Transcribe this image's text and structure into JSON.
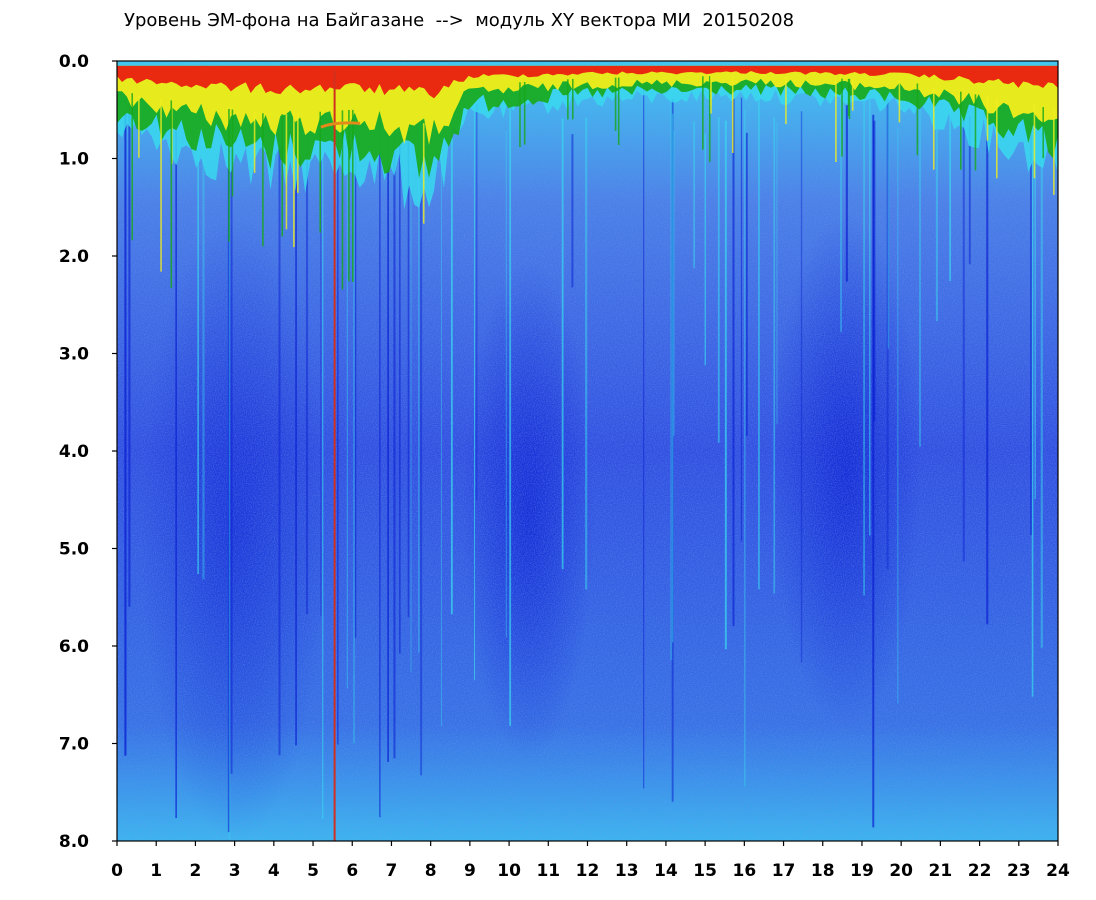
{
  "chart_data": {
    "type": "heatmap",
    "title": "Уровень ЭМ-фона на Байгазане  -->  модуль XY вектора МИ  20150208",
    "xlabel": "",
    "ylabel": "",
    "xlim": [
      0,
      24
    ],
    "ylim": [
      8.0,
      0.0
    ],
    "x_ticks": [
      "0",
      "1",
      "2",
      "3",
      "4",
      "5",
      "6",
      "7",
      "8",
      "9",
      "10",
      "11",
      "12",
      "13",
      "14",
      "15",
      "16",
      "17",
      "18",
      "19",
      "20",
      "21",
      "22",
      "23",
      "24"
    ],
    "y_ticks": [
      "0.0",
      "1.0",
      "2.0",
      "3.0",
      "4.0",
      "5.0",
      "6.0",
      "7.0",
      "8.0"
    ],
    "grid": false,
    "colors": {
      "background_low": "#2e4fe0",
      "deep_low": "#0a1ed2",
      "mid": "#39d8ee",
      "high": "#18a818",
      "higher": "#f2ee1e",
      "peak": "#ea2a10",
      "marker_line": "#d03020"
    },
    "band_top_edge": [
      {
        "x": 0,
        "y": 0.6
      },
      {
        "x": 2,
        "y": 0.9
      },
      {
        "x": 4,
        "y": 1.1
      },
      {
        "x": 6,
        "y": 1.0
      },
      {
        "x": 8,
        "y": 1.3
      },
      {
        "x": 9,
        "y": 0.5
      },
      {
        "x": 12,
        "y": 0.35
      },
      {
        "x": 16,
        "y": 0.3
      },
      {
        "x": 20,
        "y": 0.4
      },
      {
        "x": 24,
        "y": 1.0
      }
    ],
    "marker_x": 5.55
  }
}
